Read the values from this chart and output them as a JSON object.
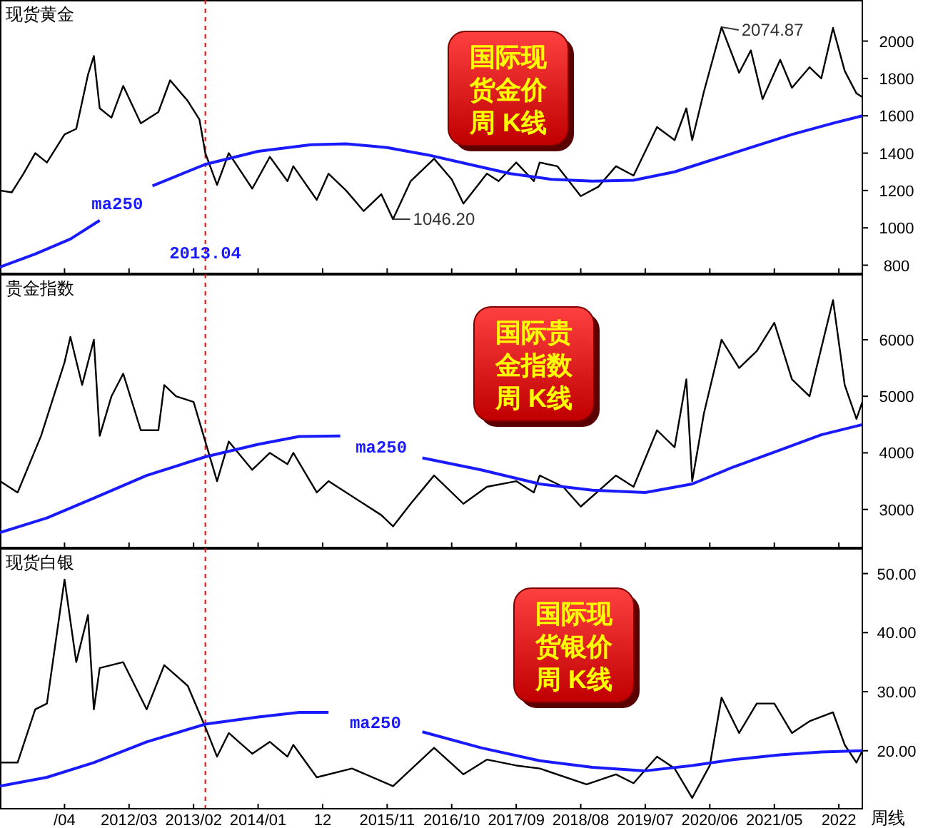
{
  "chart_data": [
    {
      "type": "line",
      "title": "现货黄金",
      "xlim": [
        "2010-05",
        "2022-08"
      ],
      "ylim": [
        760,
        2220
      ],
      "yticks": [
        800,
        1000,
        1200,
        1400,
        1600,
        1800,
        2000
      ],
      "tick_labels": "y",
      "legend": false,
      "grid": false,
      "xticks": [
        {
          "value": "2011-04",
          "label": null
        },
        {
          "value": "2012-03",
          "label": null
        },
        {
          "value": "2013-02",
          "label": null
        },
        {
          "value": "2014-01",
          "label": null
        },
        {
          "value": "2014-12",
          "label": null
        },
        {
          "value": "2015-11",
          "label": null
        },
        {
          "value": "2016-10",
          "label": null
        },
        {
          "value": "2017-09",
          "label": null
        },
        {
          "value": "2018-08",
          "label": null
        },
        {
          "value": "2019-07",
          "label": null
        },
        {
          "value": "2020-06",
          "label": null
        },
        {
          "value": "2021-05",
          "label": null
        },
        {
          "value": "2022-04",
          "label": null
        }
      ],
      "series": [
        {
          "color": "#000000",
          "x": [
            "2010-05",
            "2010-07",
            "2010-09",
            "2010-11",
            "2011-01",
            "2011-04",
            "2011-06",
            "2011-08",
            "2011-09",
            "2011-10",
            "2011-12",
            "2012-02",
            "2012-05",
            "2012-08",
            "2012-10",
            "2013-01",
            "2013-03",
            "2013-04",
            "2013-06",
            "2013-08",
            "2013-12",
            "2014-03",
            "2014-06",
            "2014-07",
            "2014-11",
            "2015-01",
            "2015-04",
            "2015-07",
            "2015-10",
            "2015-12",
            "2016-03",
            "2016-07",
            "2016-10",
            "2016-12",
            "2017-04",
            "2017-06",
            "2017-09",
            "2017-12",
            "2018-01",
            "2018-04",
            "2018-08",
            "2018-11",
            "2019-02",
            "2019-05",
            "2019-09",
            "2019-12",
            "2020-02",
            "2020-03",
            "2020-05",
            "2020-08",
            "2020-11",
            "2021-01",
            "2021-03",
            "2021-06",
            "2021-08",
            "2021-11",
            "2022-01",
            "2022-03",
            "2022-05",
            "2022-07",
            "2022-08"
          ],
          "values": [
            1200,
            1190,
            1290,
            1400,
            1350,
            1500,
            1530,
            1820,
            1920,
            1640,
            1590,
            1760,
            1560,
            1620,
            1790,
            1680,
            1580,
            1400,
            1230,
            1400,
            1210,
            1380,
            1250,
            1330,
            1150,
            1290,
            1200,
            1090,
            1180,
            1046.2,
            1250,
            1370,
            1260,
            1130,
            1290,
            1250,
            1350,
            1250,
            1350,
            1330,
            1170,
            1220,
            1330,
            1280,
            1540,
            1470,
            1640,
            1470,
            1730,
            2074.87,
            1830,
            1950,
            1690,
            1900,
            1750,
            1860,
            1800,
            2070,
            1840,
            1720,
            1700
          ]
        },
        {
          "name": "ma250",
          "color": "#1a1aff",
          "x": [
            "2010-05",
            "2010-11",
            "2011-05",
            "2011-10",
            "2012-01",
            "2012-07",
            "2013-04",
            "2014-01",
            "2014-10",
            "2015-04",
            "2015-11",
            "2016-06",
            "2017-01",
            "2017-08",
            "2018-03",
            "2018-10",
            "2019-05",
            "2019-12",
            "2020-06",
            "2021-01",
            "2021-08",
            "2022-03",
            "2022-08"
          ],
          "values": [
            790,
            860,
            940,
            1040,
            null,
            1225,
            1340,
            1410,
            1445,
            1450,
            1430,
            1390,
            1340,
            1290,
            1260,
            1250,
            1255,
            1300,
            1360,
            1430,
            1500,
            1560,
            1600
          ]
        }
      ],
      "ref_lines": [
        {
          "axis": "x",
          "value": "2013-04",
          "label": "2013.04",
          "color": "#ff0000",
          "line_style": "dashed"
        }
      ],
      "annotations": [
        "国际现货金价周 K线",
        {
          "text": "2074.87",
          "x": "2020-08",
          "y": 2074.87
        },
        {
          "text": "1046.20",
          "x": "2015-12",
          "y": 1046.2
        }
      ]
    },
    {
      "type": "line",
      "title": "贵金指数",
      "xlim": [
        "2010-05",
        "2022-08"
      ],
      "ylim": [
        2340,
        7160
      ],
      "yticks": [
        3000,
        4000,
        5000,
        6000
      ],
      "tick_labels": "y",
      "legend": false,
      "grid": false,
      "xticks": [
        {
          "value": "2011-04",
          "label": null
        },
        {
          "value": "2012-03",
          "label": null
        },
        {
          "value": "2013-02",
          "label": null
        },
        {
          "value": "2014-01",
          "label": null
        },
        {
          "value": "2014-12",
          "label": null
        },
        {
          "value": "2015-11",
          "label": null
        },
        {
          "value": "2016-10",
          "label": null
        },
        {
          "value": "2017-09",
          "label": null
        },
        {
          "value": "2018-08",
          "label": null
        },
        {
          "value": "2019-07",
          "label": null
        },
        {
          "value": "2020-06",
          "label": null
        },
        {
          "value": "2021-05",
          "label": null
        },
        {
          "value": "2022-04",
          "label": null
        }
      ],
      "series": [
        {
          "color": "#000000",
          "x": [
            "2010-05",
            "2010-08",
            "2010-12",
            "2011-04",
            "2011-05",
            "2011-07",
            "2011-09",
            "2011-10",
            "2011-12",
            "2012-02",
            "2012-05",
            "2012-08",
            "2012-09",
            "2012-11",
            "2013-02",
            "2013-04",
            "2013-06",
            "2013-08",
            "2013-12",
            "2014-03",
            "2014-06",
            "2014-07",
            "2014-11",
            "2015-01",
            "2015-07",
            "2015-10",
            "2015-12",
            "2016-03",
            "2016-07",
            "2016-12",
            "2017-04",
            "2017-09",
            "2017-12",
            "2018-01",
            "2018-05",
            "2018-08",
            "2019-02",
            "2019-05",
            "2019-09",
            "2019-12",
            "2020-02",
            "2020-03",
            "2020-05",
            "2020-08",
            "2020-11",
            "2021-02",
            "2021-05",
            "2021-08",
            "2021-11",
            "2022-03",
            "2022-05",
            "2022-07",
            "2022-08"
          ],
          "values": [
            3500,
            3300,
            4300,
            5600,
            6050,
            5200,
            6000,
            4300,
            5000,
            5400,
            4400,
            4400,
            5200,
            5000,
            4900,
            4200,
            3500,
            4200,
            3700,
            4000,
            3800,
            4000,
            3300,
            3500,
            3100,
            2900,
            2700,
            3100,
            3600,
            3100,
            3400,
            3500,
            3300,
            3600,
            3400,
            3050,
            3600,
            3400,
            4400,
            4100,
            5300,
            3500,
            4700,
            6000,
            5500,
            5800,
            6300,
            5300,
            5000,
            6700,
            5200,
            4600,
            4900
          ]
        },
        {
          "name": "ma250",
          "color": "#1a1aff",
          "x": [
            "2010-05",
            "2011-01",
            "2011-09",
            "2012-06",
            "2013-04",
            "2014-01",
            "2014-08",
            "2015-03",
            "2015-10",
            "2016-05",
            "2017-03",
            "2018-01",
            "2018-10",
            "2019-07",
            "2020-03",
            "2020-10",
            "2021-06",
            "2022-01",
            "2022-08"
          ],
          "values": [
            2590,
            2850,
            3200,
            3600,
            3930,
            4150,
            4290,
            4300,
            null,
            3910,
            3700,
            3450,
            3340,
            3300,
            3450,
            3750,
            4050,
            4320,
            4500
          ]
        }
      ],
      "ref_lines": [
        {
          "axis": "x",
          "value": "2013-04",
          "color": "#ff0000",
          "line_style": "dashed"
        }
      ],
      "annotations": [
        "国际贵金指数周 K线"
      ]
    },
    {
      "type": "line",
      "title": "现货白银",
      "xlim": [
        "2010-05",
        "2022-08"
      ],
      "ylim": [
        10.3,
        54.3
      ],
      "yticks": [
        {
          "value": 20,
          "label": "20.00"
        },
        {
          "value": 30,
          "label": "30.00"
        },
        {
          "value": 40,
          "label": "40.00"
        },
        {
          "value": 50,
          "label": "50.00"
        }
      ],
      "legend": false,
      "grid": false,
      "xticks": [
        {
          "value": "2011-04",
          "label": "/04"
        },
        {
          "value": "2012-03",
          "label": "2012/03"
        },
        {
          "value": "2013-02",
          "label": "2013/02"
        },
        {
          "value": "2014-01",
          "label": "2014/01"
        },
        {
          "value": "2014-12",
          "label": "12"
        },
        {
          "value": "2015-11",
          "label": "2015/11"
        },
        {
          "value": "2016-10",
          "label": "2016/10"
        },
        {
          "value": "2017-09",
          "label": "2017/09"
        },
        {
          "value": "2018-08",
          "label": "2018/08"
        },
        {
          "value": "2019-07",
          "label": "2019/07"
        },
        {
          "value": "2020-06",
          "label": "2020/06"
        },
        {
          "value": "2021-05",
          "label": "2021/05"
        },
        {
          "value": "2022-04",
          "label": "2022"
        }
      ],
      "series": [
        {
          "color": "#000000",
          "x": [
            "2010-05",
            "2010-08",
            "2010-11",
            "2011-01",
            "2011-04",
            "2011-06",
            "2011-08",
            "2011-09",
            "2011-10",
            "2012-02",
            "2012-06",
            "2012-09",
            "2013-01",
            "2013-04",
            "2013-06",
            "2013-08",
            "2013-12",
            "2014-03",
            "2014-06",
            "2014-07",
            "2014-11",
            "2015-05",
            "2015-12",
            "2016-07",
            "2016-12",
            "2017-04",
            "2017-09",
            "2018-01",
            "2018-09",
            "2019-02",
            "2019-05",
            "2019-09",
            "2019-12",
            "2020-03",
            "2020-06",
            "2020-08",
            "2020-11",
            "2021-02",
            "2021-05",
            "2021-08",
            "2021-11",
            "2022-03",
            "2022-05",
            "2022-07",
            "2022-08"
          ],
          "values": [
            18,
            18,
            27,
            28,
            49,
            35,
            43,
            27,
            34,
            35,
            27,
            34.5,
            31,
            24,
            19,
            23,
            19.5,
            21.5,
            19,
            21,
            15.5,
            17,
            14,
            20.5,
            16,
            18.5,
            17.5,
            17,
            14.3,
            16,
            14.5,
            19,
            17,
            12,
            17.5,
            29,
            23,
            28,
            28,
            23,
            25,
            26.5,
            21,
            18,
            20
          ]
        },
        {
          "name": "ma250",
          "color": "#1a1aff",
          "x": [
            "2010-05",
            "2011-01",
            "2011-09",
            "2012-06",
            "2013-04",
            "2014-01",
            "2014-08",
            "2015-01",
            "2015-09",
            "2016-05",
            "2017-03",
            "2018-01",
            "2018-10",
            "2019-07",
            "2020-03",
            "2020-10",
            "2021-06",
            "2022-01",
            "2022-08"
          ],
          "values": [
            14,
            15.5,
            18,
            21.5,
            24.5,
            25.7,
            26.5,
            26.5,
            null,
            23.2,
            20.5,
            18.3,
            17.2,
            16.6,
            17.5,
            18.5,
            19.3,
            19.8,
            20
          ]
        }
      ],
      "ref_lines": [
        {
          "axis": "x",
          "value": "2013-04",
          "color": "#ff0000",
          "line_style": "dashed"
        }
      ],
      "annotations": [
        "国际现货银价周 K线",
        "周线"
      ]
    }
  ]
}
